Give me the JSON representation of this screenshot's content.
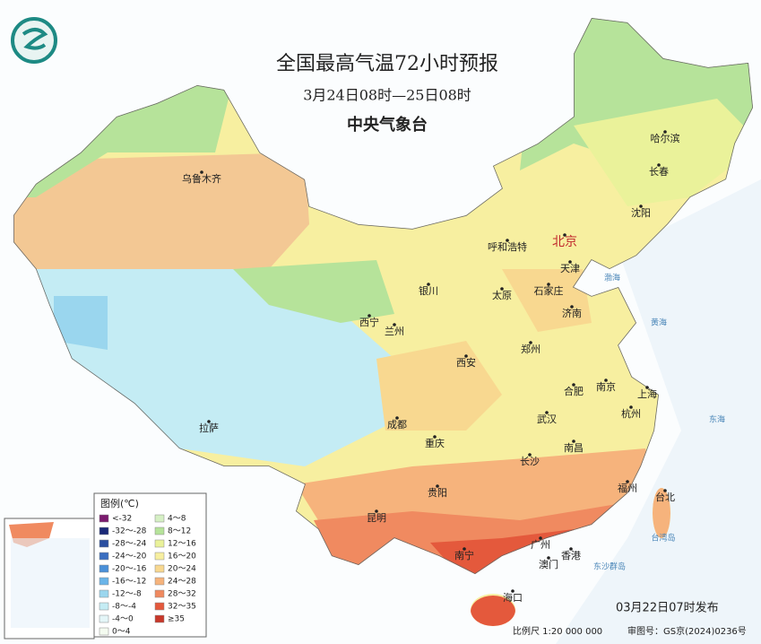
{
  "header": {
    "title": "全国最高气温72小时预报",
    "subtitle": "3月24日08时—25日08时",
    "agency": "中央气象台"
  },
  "cities": [
    {
      "name": "乌鲁木齐"
    },
    {
      "name": "哈尔滨"
    },
    {
      "name": "长春"
    },
    {
      "name": "沈阳"
    },
    {
      "name": "呼和浩特"
    },
    {
      "name": "北京",
      "color": "#c0282c"
    },
    {
      "name": "天津"
    },
    {
      "name": "银川"
    },
    {
      "name": "太原"
    },
    {
      "name": "石家庄"
    },
    {
      "name": "济南"
    },
    {
      "name": "西宁"
    },
    {
      "name": "兰州"
    },
    {
      "name": "郑州"
    },
    {
      "name": "西安"
    },
    {
      "name": "南京"
    },
    {
      "name": "合肥"
    },
    {
      "name": "上海"
    },
    {
      "name": "杭州"
    },
    {
      "name": "成都"
    },
    {
      "name": "武汉"
    },
    {
      "name": "拉萨"
    },
    {
      "name": "重庆"
    },
    {
      "name": "长沙"
    },
    {
      "name": "南昌"
    },
    {
      "name": "福州"
    },
    {
      "name": "台北"
    },
    {
      "name": "贵阳"
    },
    {
      "name": "昆明"
    },
    {
      "name": "南宁"
    },
    {
      "name": "广州"
    },
    {
      "name": "澳门"
    },
    {
      "name": "香港"
    },
    {
      "name": "海口"
    }
  ],
  "seas": [
    "渤海",
    "黄海",
    "东海",
    "台湾岛",
    "东沙群岛"
  ],
  "legend": {
    "title": "图例(℃)",
    "items": [
      {
        "label": "<-32",
        "color": "#7b1a6e"
      },
      {
        "label": "-32～-28",
        "color": "#1b2a78"
      },
      {
        "label": "-28～-24",
        "color": "#2a4fa0"
      },
      {
        "label": "-24～-20",
        "color": "#3a6fc0"
      },
      {
        "label": "-20～-16",
        "color": "#4a90d8"
      },
      {
        "label": "-16～-12",
        "color": "#6ab4e8"
      },
      {
        "label": "-12～-8",
        "color": "#9ad6ee"
      },
      {
        "label": "-8～-4",
        "color": "#c4ecf4"
      },
      {
        "label": "-4～0",
        "color": "#e4f6f8"
      },
      {
        "label": "0～4",
        "color": "#f4fbf0"
      },
      {
        "label": "4～8",
        "color": "#d6f0c4"
      },
      {
        "label": "8～12",
        "color": "#b6e39a"
      },
      {
        "label": "12～16",
        "color": "#eaf29a"
      },
      {
        "label": "16～20",
        "color": "#f7efa0"
      },
      {
        "label": "20～24",
        "color": "#f8d890"
      },
      {
        "label": "24～28",
        "color": "#f6b37c"
      },
      {
        "label": "28～32",
        "color": "#f08a60"
      },
      {
        "label": "32～35",
        "color": "#e4593c"
      },
      {
        "label": "≥35",
        "color": "#c8382a"
      }
    ]
  },
  "footer": {
    "issued": "03月22日07时发布",
    "scale": "比例尺 1:20 000 000",
    "review": "审图号：GS京(2024)0236号"
  }
}
